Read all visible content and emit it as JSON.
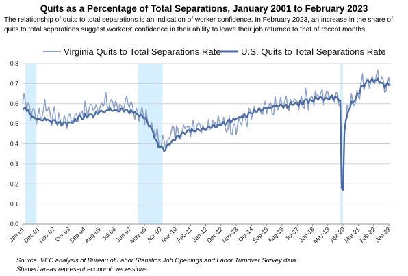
{
  "title": "Quits as a Percentage of Total Separations, January 2001 to February 2023",
  "subtitle": "The relationship of quits to total separations is an indication of worker confidence. In February 2023, an increase in the share of quits to total separations suggest workers' confidence in their ability to leave their job returned to that of recent months.",
  "footer": {
    "source": "Source: VEC analysis of Bureau of Labor Statistics Job Openings and Labor Turnover Survey data.",
    "note": "Shaded areas represent economic recessions."
  },
  "chart_data": {
    "type": "line",
    "x_start": "2001-01",
    "x_end": "2023-02",
    "x_ticks": [
      "Jan-01",
      "Dec-01",
      "Nov-02",
      "Oct-03",
      "Sep-04",
      "Aug-05",
      "Jul-06",
      "Jun-07",
      "May-08",
      "Apr-09",
      "Mar-10",
      "Feb-11",
      "Jan-12",
      "Dec-12",
      "Nov-13",
      "Oct-14",
      "Sep-15",
      "Aug-16",
      "Jul-17",
      "Jun-18",
      "May-19",
      "Apr-20",
      "Mar-21",
      "Feb-22",
      "Jan-23"
    ],
    "ylim": [
      0,
      0.8
    ],
    "y_ticks": [
      "0.0",
      "0.1",
      "0.2",
      "0.3",
      "0.4",
      "0.5",
      "0.6",
      "0.7",
      "0.8"
    ],
    "grid": true,
    "legend_position": "top",
    "recessions": [
      {
        "start": "2001-03",
        "end": "2001-11"
      },
      {
        "start": "2007-12",
        "end": "2009-06"
      },
      {
        "start": "2020-02",
        "end": "2020-04"
      }
    ],
    "colors": {
      "virginia": "#8fa3c9",
      "us": "#4a6aa3",
      "recession": "#d6efff",
      "grid": "#d0d0d0"
    },
    "series": [
      {
        "name": "Virginia Quits to Total Separations Rate",
        "key": "virginia",
        "anchors": [
          [
            "2001-01",
            0.6
          ],
          [
            "2001-03",
            0.64
          ],
          [
            "2001-06",
            0.57
          ],
          [
            "2001-09",
            0.55
          ],
          [
            "2001-12",
            0.53
          ],
          [
            "2002-03",
            0.56
          ],
          [
            "2002-06",
            0.6
          ],
          [
            "2002-09",
            0.55
          ],
          [
            "2002-12",
            0.53
          ],
          [
            "2003-06",
            0.51
          ],
          [
            "2003-12",
            0.53
          ],
          [
            "2004-06",
            0.55
          ],
          [
            "2004-12",
            0.57
          ],
          [
            "2005-06",
            0.59
          ],
          [
            "2005-12",
            0.6
          ],
          [
            "2006-06",
            0.6
          ],
          [
            "2006-12",
            0.59
          ],
          [
            "2007-06",
            0.58
          ],
          [
            "2007-12",
            0.56
          ],
          [
            "2008-06",
            0.53
          ],
          [
            "2008-09",
            0.5
          ],
          [
            "2008-12",
            0.46
          ],
          [
            "2009-03",
            0.41
          ],
          [
            "2009-06",
            0.4
          ],
          [
            "2009-09",
            0.42
          ],
          [
            "2009-12",
            0.45
          ],
          [
            "2010-06",
            0.47
          ],
          [
            "2010-12",
            0.48
          ],
          [
            "2011-06",
            0.5
          ],
          [
            "2011-12",
            0.49
          ],
          [
            "2012-06",
            0.51
          ],
          [
            "2012-12",
            0.5
          ],
          [
            "2013-06",
            0.49
          ],
          [
            "2013-12",
            0.5
          ],
          [
            "2014-06",
            0.53
          ],
          [
            "2014-12",
            0.55
          ],
          [
            "2015-06",
            0.56
          ],
          [
            "2015-12",
            0.57
          ],
          [
            "2016-06",
            0.59
          ],
          [
            "2016-12",
            0.6
          ],
          [
            "2017-06",
            0.61
          ],
          [
            "2017-12",
            0.62
          ],
          [
            "2018-06",
            0.63
          ],
          [
            "2018-12",
            0.64
          ],
          [
            "2019-06",
            0.64
          ],
          [
            "2019-12",
            0.64
          ],
          [
            "2020-01",
            0.63
          ],
          [
            "2020-02",
            0.62
          ],
          [
            "2020-03",
            0.3
          ],
          [
            "2020-04",
            0.2
          ],
          [
            "2020-05",
            0.45
          ],
          [
            "2020-06",
            0.53
          ],
          [
            "2020-09",
            0.6
          ],
          [
            "2020-12",
            0.62
          ],
          [
            "2021-03",
            0.66
          ],
          [
            "2021-06",
            0.7
          ],
          [
            "2021-09",
            0.72
          ],
          [
            "2021-12",
            0.71
          ],
          [
            "2022-03",
            0.72
          ],
          [
            "2022-06",
            0.71
          ],
          [
            "2022-09",
            0.7
          ],
          [
            "2022-12",
            0.7
          ],
          [
            "2023-02",
            0.71
          ]
        ]
      },
      {
        "name": "U.S. Quits to Total Separations Rate",
        "key": "us",
        "anchors": [
          [
            "2001-01",
            0.57
          ],
          [
            "2001-03",
            0.58
          ],
          [
            "2001-06",
            0.55
          ],
          [
            "2001-09",
            0.53
          ],
          [
            "2001-12",
            0.52
          ],
          [
            "2002-06",
            0.52
          ],
          [
            "2002-12",
            0.51
          ],
          [
            "2003-06",
            0.5
          ],
          [
            "2003-12",
            0.51
          ],
          [
            "2004-06",
            0.53
          ],
          [
            "2004-12",
            0.54
          ],
          [
            "2005-06",
            0.55
          ],
          [
            "2005-12",
            0.56
          ],
          [
            "2006-06",
            0.57
          ],
          [
            "2006-12",
            0.57
          ],
          [
            "2007-06",
            0.56
          ],
          [
            "2007-12",
            0.55
          ],
          [
            "2008-06",
            0.52
          ],
          [
            "2008-09",
            0.49
          ],
          [
            "2008-12",
            0.44
          ],
          [
            "2009-03",
            0.39
          ],
          [
            "2009-06",
            0.37
          ],
          [
            "2009-09",
            0.38
          ],
          [
            "2009-12",
            0.41
          ],
          [
            "2010-06",
            0.44
          ],
          [
            "2010-12",
            0.46
          ],
          [
            "2011-06",
            0.47
          ],
          [
            "2011-12",
            0.48
          ],
          [
            "2012-06",
            0.49
          ],
          [
            "2012-12",
            0.5
          ],
          [
            "2013-06",
            0.51
          ],
          [
            "2013-12",
            0.53
          ],
          [
            "2014-06",
            0.54
          ],
          [
            "2014-12",
            0.56
          ],
          [
            "2015-06",
            0.57
          ],
          [
            "2015-12",
            0.58
          ],
          [
            "2016-06",
            0.59
          ],
          [
            "2016-12",
            0.59
          ],
          [
            "2017-06",
            0.6
          ],
          [
            "2017-12",
            0.61
          ],
          [
            "2018-06",
            0.62
          ],
          [
            "2018-12",
            0.63
          ],
          [
            "2019-06",
            0.63
          ],
          [
            "2019-12",
            0.63
          ],
          [
            "2020-01",
            0.62
          ],
          [
            "2020-02",
            0.61
          ],
          [
            "2020-03",
            0.18
          ],
          [
            "2020-04",
            0.17
          ],
          [
            "2020-05",
            0.46
          ],
          [
            "2020-06",
            0.52
          ],
          [
            "2020-09",
            0.59
          ],
          [
            "2020-12",
            0.62
          ],
          [
            "2021-03",
            0.65
          ],
          [
            "2021-06",
            0.69
          ],
          [
            "2021-09",
            0.71
          ],
          [
            "2021-12",
            0.71
          ],
          [
            "2022-03",
            0.72
          ],
          [
            "2022-06",
            0.71
          ],
          [
            "2022-09",
            0.69
          ],
          [
            "2022-12",
            0.69
          ],
          [
            "2023-02",
            0.7
          ]
        ]
      }
    ]
  }
}
